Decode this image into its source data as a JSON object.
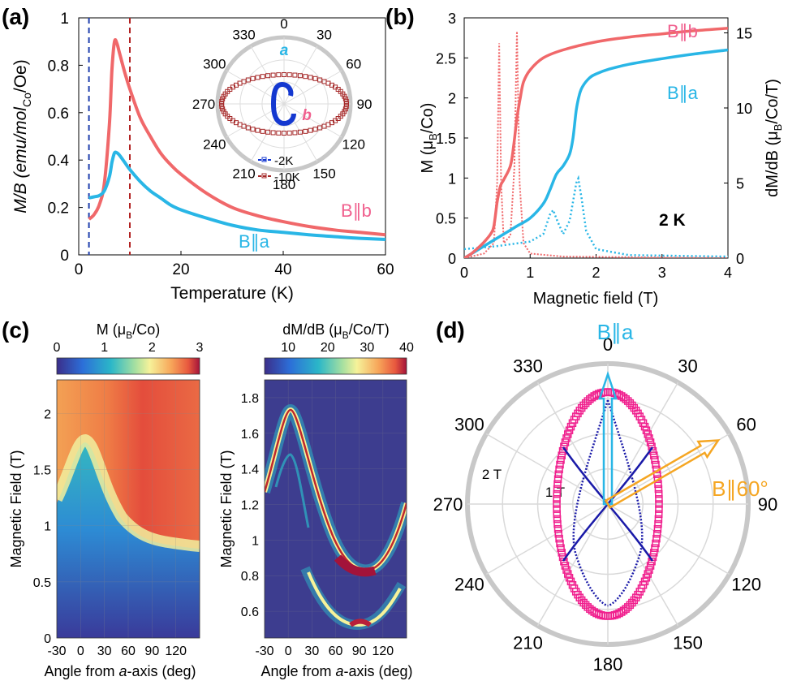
{
  "panel_labels": [
    "(a)",
    "(b)",
    "(c)",
    "(d)"
  ],
  "colors": {
    "b_axis": "#f0686a",
    "a_axis": "#29b6e6",
    "b_label": "#f0608e",
    "dashed_blue": "#1f3fae",
    "dashed_red": "#b22222",
    "polar_10K": "#a52828",
    "polar_2K": "#1438d0",
    "polar_d_outer": "#f0208e",
    "polar_d_inner": "#1a1aa8",
    "arrow_orange": "#f5a623",
    "map_bg": "#3d3d8f"
  },
  "chart_data": [
    {
      "id": "a",
      "type": "line",
      "xlabel": "Temperature (K)",
      "ylabel": "M/B (emu/mol",
      "ylabel_sub": "Co",
      "ylabel_tail": "/Oe)",
      "xlim": [
        0,
        60
      ],
      "ylim": [
        0,
        1
      ],
      "xticks": [
        0,
        20,
        40,
        60
      ],
      "yticks": [
        0,
        0.2,
        0.4,
        0.6,
        0.8,
        1
      ],
      "vlines": [
        2,
        10
      ],
      "series": [
        {
          "name": "B||b",
          "label": "B∥b",
          "x": [
            2,
            3,
            4,
            5,
            6,
            6.5,
            7,
            7.5,
            8,
            9,
            10,
            12,
            14,
            16,
            18,
            20,
            25,
            30,
            35,
            40,
            45,
            50,
            55,
            60
          ],
          "y": [
            0.15,
            0.17,
            0.21,
            0.3,
            0.55,
            0.78,
            0.9,
            0.89,
            0.85,
            0.77,
            0.7,
            0.58,
            0.5,
            0.43,
            0.38,
            0.34,
            0.26,
            0.2,
            0.165,
            0.14,
            0.12,
            0.105,
            0.095,
            0.085
          ]
        },
        {
          "name": "B||a",
          "label": "B∥a",
          "x": [
            2,
            3,
            4,
            5,
            6,
            6.5,
            7,
            7.5,
            8,
            9,
            10,
            12,
            14,
            16,
            18,
            20,
            25,
            30,
            35,
            40,
            45,
            50,
            55,
            60
          ],
          "y": [
            0.24,
            0.245,
            0.25,
            0.27,
            0.33,
            0.39,
            0.43,
            0.43,
            0.42,
            0.39,
            0.36,
            0.31,
            0.27,
            0.24,
            0.21,
            0.19,
            0.155,
            0.125,
            0.105,
            0.095,
            0.085,
            0.077,
            0.07,
            0.065
          ]
        }
      ],
      "inset": {
        "type": "polar",
        "angle_labels": [
          "0",
          "30",
          "60",
          "90",
          "120",
          "150",
          "180",
          "210",
          "240",
          "270",
          "300",
          "330"
        ],
        "axis_labels": [
          "a",
          "b"
        ],
        "legend": [
          "2K",
          "10K"
        ]
      }
    },
    {
      "id": "b",
      "type": "line",
      "xlabel": "Magnetic field (T)",
      "ylabel_left": "M (μ",
      "ylabel_left_sub": "B",
      "ylabel_left_tail": "/Co)",
      "ylabel_right": "dM/dB (μ",
      "ylabel_right_sub": "B",
      "ylabel_right_tail": "/Co/T)",
      "xlim": [
        0,
        4
      ],
      "ylim": [
        0,
        3
      ],
      "ylim_right": [
        0,
        16
      ],
      "xticks": [
        0,
        1,
        2,
        3,
        4
      ],
      "yticks": [
        0,
        0.5,
        1,
        1.5,
        2,
        2.5,
        3
      ],
      "yticks_right": [
        0,
        5,
        10,
        15
      ],
      "annotation": "2 K",
      "series": [
        {
          "name": "B||b M",
          "label": "B∥b",
          "x": [
            0,
            0.1,
            0.2,
            0.3,
            0.4,
            0.45,
            0.5,
            0.55,
            0.6,
            0.7,
            0.75,
            0.8,
            0.85,
            0.9,
            1.0,
            1.2,
            1.5,
            2,
            2.5,
            3,
            3.5,
            4
          ],
          "y": [
            0,
            0.05,
            0.12,
            0.2,
            0.3,
            0.4,
            0.7,
            0.9,
            0.98,
            1.15,
            1.4,
            1.75,
            2.0,
            2.2,
            2.35,
            2.5,
            2.6,
            2.7,
            2.76,
            2.8,
            2.84,
            2.87
          ]
        },
        {
          "name": "B||a M",
          "label": "B∥a",
          "x": [
            0,
            0.2,
            0.4,
            0.6,
            0.8,
            1.0,
            1.2,
            1.3,
            1.4,
            1.5,
            1.6,
            1.65,
            1.7,
            1.75,
            1.8,
            1.9,
            2.0,
            2.2,
            2.5,
            3,
            3.5,
            4
          ],
          "y": [
            0,
            0.1,
            0.2,
            0.3,
            0.4,
            0.5,
            0.68,
            0.85,
            1.05,
            1.15,
            1.3,
            1.5,
            1.85,
            2.05,
            2.15,
            2.25,
            2.3,
            2.36,
            2.42,
            2.49,
            2.55,
            2.6
          ]
        },
        {
          "name": "B||b dM/dB",
          "x": [
            0,
            0.3,
            0.45,
            0.5,
            0.53,
            0.56,
            0.6,
            0.7,
            0.76,
            0.8,
            0.84,
            0.9,
            1.0,
            1.5,
            4
          ],
          "y": [
            0,
            0.3,
            1,
            5,
            14.3,
            5,
            1,
            1.5,
            6,
            15.1,
            5,
            1,
            0.3,
            0.1,
            0
          ]
        },
        {
          "name": "B||a dM/dB",
          "x": [
            0,
            0.5,
            1.0,
            1.2,
            1.3,
            1.35,
            1.4,
            1.5,
            1.6,
            1.7,
            1.73,
            1.78,
            1.85,
            2.0,
            2.5,
            4
          ],
          "y": [
            0.6,
            0.8,
            1.1,
            1.6,
            2.9,
            3.2,
            2.6,
            1.6,
            2.5,
            5.0,
            5.3,
            4.0,
            1.8,
            0.6,
            0.2,
            0.1
          ]
        }
      ]
    },
    {
      "id": "c-left",
      "type": "heatmap",
      "colorbar_label": "M (μ",
      "colorbar_label_sub": "B",
      "colorbar_label_tail": "/Co)",
      "colorbar_ticks": [
        "0",
        "1",
        "2",
        "3"
      ],
      "xlabel_pre": "Angle from ",
      "xlabel_italic": "a",
      "xlabel_post": "-axis (deg)",
      "ylabel": "Magnetic Field (T)",
      "xlim": [
        -30,
        150
      ],
      "ylim": [
        0,
        2.3
      ],
      "xticks": [
        "-30",
        "0",
        "30",
        "60",
        "90",
        "120"
      ],
      "yticks": [
        "0",
        "0.5",
        "1",
        "1.5",
        "2"
      ]
    },
    {
      "id": "c-right",
      "type": "heatmap",
      "colorbar_label": "dM/dB (μ",
      "colorbar_label_sub": "B",
      "colorbar_label_tail": "/Co/T)",
      "colorbar_ticks": [
        "10",
        "20",
        "30",
        "40"
      ],
      "xlabel_pre": "Angle from ",
      "xlabel_italic": "a",
      "xlabel_post": "-axis (deg)",
      "ylabel": "Magnetic Field (T)",
      "xlim": [
        -30,
        150
      ],
      "ylim": [
        0.45,
        1.9
      ],
      "xticks": [
        "-30",
        "0",
        "30",
        "60",
        "90",
        "120"
      ],
      "yticks": [
        "0.6",
        "0.8",
        "1",
        "1.2",
        "1.4",
        "1.6",
        "1.8"
      ]
    },
    {
      "id": "d",
      "type": "polar",
      "angle_labels": [
        "0",
        "30",
        "60",
        "90",
        "120",
        "150",
        "180",
        "210",
        "240",
        "270",
        "300",
        "330"
      ],
      "radial_labels": [
        "1 T",
        "2 T"
      ],
      "arrow_labels": [
        "B∥a",
        "B∥60°"
      ]
    }
  ]
}
